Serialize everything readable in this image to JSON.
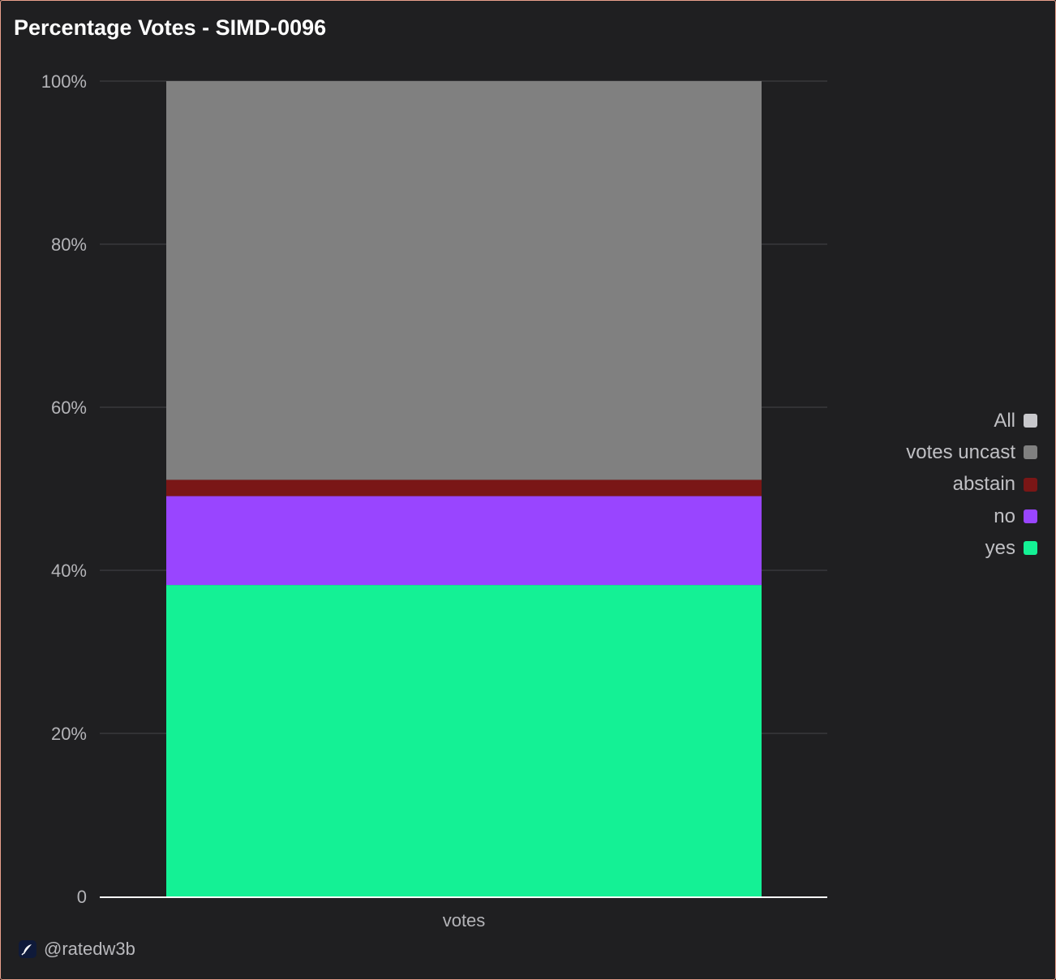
{
  "chart_data": {
    "type": "bar",
    "stacked": true,
    "percent": true,
    "title": "Percentage Votes - SIMD-0096",
    "categories": [
      "votes"
    ],
    "yticks": [
      "0",
      "20%",
      "40%",
      "60%",
      "80%",
      "100%"
    ],
    "ylim": [
      0,
      100
    ],
    "grid": true,
    "legend_position": "right",
    "series": [
      {
        "name": "yes",
        "values": [
          38.2
        ],
        "color": "#14f195"
      },
      {
        "name": "no",
        "values": [
          10.9
        ],
        "color": "#9945ff"
      },
      {
        "name": "abstain",
        "values": [
          2.0
        ],
        "color": "#7a1616"
      },
      {
        "name": "votes uncast",
        "values": [
          48.9
        ],
        "color": "#808080"
      }
    ],
    "legend": [
      {
        "label": "All",
        "color": "#c8c8cc"
      },
      {
        "label": "votes uncast",
        "color": "#808080"
      },
      {
        "label": "abstain",
        "color": "#7a1616"
      },
      {
        "label": "no",
        "color": "#9945ff"
      },
      {
        "label": "yes",
        "color": "#14f195"
      }
    ]
  },
  "footer": {
    "handle": "@ratedw3b",
    "logo_icon": "feather-icon"
  }
}
